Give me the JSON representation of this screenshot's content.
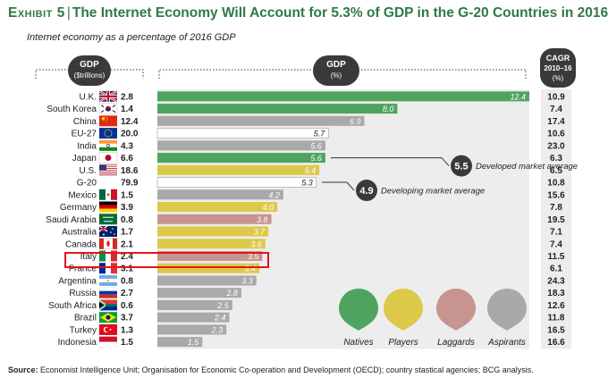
{
  "title": {
    "exhibit": "Exhibit 5",
    "separator": "|",
    "text": "The Internet Economy Will Account for 5.3% of GDP in the G-20 Countries in 2016"
  },
  "subtitle": "Internet economy as a percentage of 2016 GDP",
  "source": {
    "label": "Source:",
    "text": "Economist Intelligence Unit; Organisation for Economic Co-operation and Development (OECD); country stastical agencies; BCG analysis."
  },
  "colors": {
    "natives": "#4ea45e",
    "players": "#dcc94a",
    "laggards": "#c7948f",
    "aspirants": "#a9a9a9",
    "aggregate": "#ffffff",
    "title_green": "#2d7a46",
    "highlight": "#e3141b"
  },
  "chart_data": {
    "type": "bar",
    "orientation": "horizontal",
    "title": "The Internet Economy Will Account for 5.3% of GDP in the G-20 Countries in 2016",
    "subtitle": "Internet economy as a percentage of 2016 GDP",
    "headers": {
      "gdp_line1": "GDP",
      "gdp_line2": "($trillions)",
      "pct_line1": "GDP",
      "pct_line2": "(%)",
      "cagr_line1": "CAGR",
      "cagr_line2": "2010–16",
      "cagr_line3": "(%)"
    },
    "xlim": [
      0,
      12.4
    ],
    "rows": [
      {
        "country": "U.K.",
        "gdp": "2.8",
        "value": 12.4,
        "label": "12.4",
        "cagr": "10.9",
        "group": "natives",
        "flag": "uk-flag"
      },
      {
        "country": "South Korea",
        "gdp": "1.4",
        "value": 8.0,
        "label": "8.0",
        "cagr": "7.4",
        "group": "natives",
        "flag": "south-korea-flag"
      },
      {
        "country": "China",
        "gdp": "12.4",
        "value": 6.9,
        "label": "6.9",
        "cagr": "17.4",
        "group": "aspirants",
        "flag": "china-flag"
      },
      {
        "country": "EU-27",
        "gdp": "20.0",
        "value": 5.7,
        "label": "5.7",
        "cagr": "10.6",
        "group": "aggregate",
        "flag": "eu-flag"
      },
      {
        "country": "India",
        "gdp": "4.3",
        "value": 5.6,
        "label": "5.6",
        "cagr": "23.0",
        "group": "aspirants",
        "flag": "india-flag"
      },
      {
        "country": "Japan",
        "gdp": "6.6",
        "value": 5.6,
        "label": "5.6",
        "cagr": "6.3",
        "group": "natives",
        "flag": "japan-flag"
      },
      {
        "country": "U.S.",
        "gdp": "18.6",
        "value": 5.4,
        "label": "5.4",
        "cagr": "6.5",
        "group": "players",
        "flag": "us-flag"
      },
      {
        "country": "G-20",
        "gdp": "79.9",
        "value": 5.3,
        "label": "5.3",
        "cagr": "10.8",
        "group": "aggregate",
        "flag": ""
      },
      {
        "country": "Mexico",
        "gdp": "1.5",
        "value": 4.2,
        "label": "4.2",
        "cagr": "15.6",
        "group": "aspirants",
        "flag": "mexico-flag"
      },
      {
        "country": "Germany",
        "gdp": "3.9",
        "value": 4.0,
        "label": "4.0",
        "cagr": "7.8",
        "group": "players",
        "flag": "germany-flag"
      },
      {
        "country": "Saudi Arabia",
        "gdp": "0.8",
        "value": 3.8,
        "label": "3.8",
        "cagr": "19.5",
        "group": "laggards",
        "flag": "saudi-arabia-flag"
      },
      {
        "country": "Australia",
        "gdp": "1.7",
        "value": 3.7,
        "label": "3.7",
        "cagr": "7.1",
        "group": "players",
        "flag": "australia-flag"
      },
      {
        "country": "Canada",
        "gdp": "2.1",
        "value": 3.6,
        "label": "3.6",
        "cagr": "7.4",
        "group": "players",
        "flag": "canada-flag"
      },
      {
        "country": "Italy",
        "gdp": "2.4",
        "value": 3.5,
        "label": "3.5",
        "cagr": "11.5",
        "group": "laggards",
        "flag": "italy-flag"
      },
      {
        "country": "France",
        "gdp": "3.1",
        "value": 3.4,
        "label": "3.4",
        "cagr": "6.1",
        "group": "players",
        "flag": "france-flag"
      },
      {
        "country": "Argentina",
        "gdp": "0.8",
        "value": 3.3,
        "label": "3.3",
        "cagr": "24.3",
        "group": "aspirants",
        "flag": "argentina-flag"
      },
      {
        "country": "Russia",
        "gdp": "2.7",
        "value": 2.8,
        "label": "2.8",
        "cagr": "18.3",
        "group": "aspirants",
        "flag": "russia-flag"
      },
      {
        "country": "South Africa",
        "gdp": "0.6",
        "value": 2.5,
        "label": "2.5",
        "cagr": "12.6",
        "group": "aspirants",
        "flag": "south-africa-flag"
      },
      {
        "country": "Brazil",
        "gdp": "3.7",
        "value": 2.4,
        "label": "2.4",
        "cagr": "11.8",
        "group": "aspirants",
        "flag": "brazil-flag"
      },
      {
        "country": "Turkey",
        "gdp": "1.3",
        "value": 2.3,
        "label": "2.3",
        "cagr": "16.5",
        "group": "aspirants",
        "flag": "turkey-flag"
      },
      {
        "country": "Indonesia",
        "gdp": "1.5",
        "value": 1.5,
        "label": "1.5",
        "cagr": "16.6",
        "group": "aspirants",
        "flag": "indonesia-flag"
      }
    ],
    "annotations": [
      {
        "value": "5.5",
        "text": "Developed market average",
        "anchor_row": "Japan"
      },
      {
        "value": "4.9",
        "text": "Developing market average",
        "anchor_row": "G-20"
      }
    ],
    "legend": [
      {
        "key": "natives",
        "label": "Natives"
      },
      {
        "key": "players",
        "label": "Players"
      },
      {
        "key": "laggards",
        "label": "Laggards"
      },
      {
        "key": "aspirants",
        "label": "Aspirants"
      }
    ],
    "highlighted_row": "Italy"
  }
}
